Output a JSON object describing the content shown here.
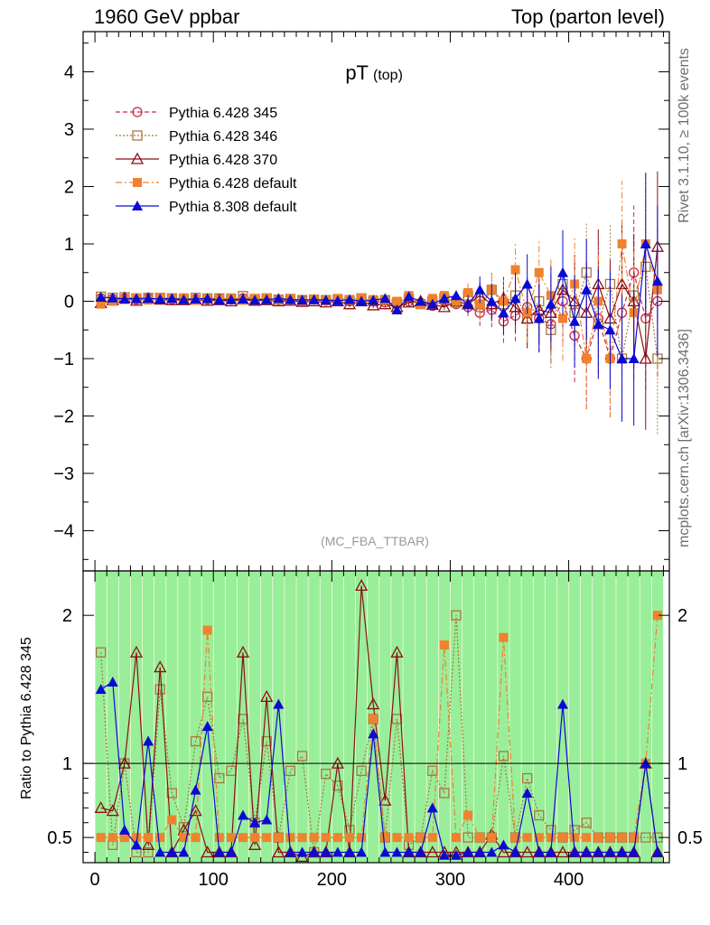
{
  "header": {
    "left": "1960 GeV ppbar",
    "right": "Top (parton level)"
  },
  "side_labels": {
    "rivet": "Rivet 3.1.10, ≥ 100k events",
    "mcplots": "mcplots.cern.ch [arXiv:1306.3436]"
  },
  "plot": {
    "title_main": "pT",
    "title_sub": "(top)",
    "watermark": "(MC_FBA_TTBAR)",
    "ratio_ylabel": "Ratio to Pythia 6.428 345"
  },
  "legend": [
    {
      "label": "Pythia 6.428 345",
      "color": "#c8284b",
      "marker": "open-circle",
      "dash": "5,3"
    },
    {
      "label": "Pythia 6.428 346",
      "color": "#a5793e",
      "marker": "open-square",
      "dash": "2,2"
    },
    {
      "label": "Pythia 6.428 370",
      "color": "#8c0f14",
      "marker": "open-triangle",
      "dash": ""
    },
    {
      "label": "Pythia 6.428 default",
      "color": "#f0822d",
      "marker": "filled-square",
      "dash": "7,3,2,3"
    },
    {
      "label": "Pythia 8.308 default",
      "color": "#0a0ad2",
      "marker": "filled-triangle",
      "dash": ""
    }
  ],
  "chart_data": {
    "type": "scatter",
    "title": "pT (top)",
    "xlim": [
      -10,
      485
    ],
    "ylim": [
      -4.7,
      4.7
    ],
    "ratio_ylim": [
      0.33,
      2.3
    ],
    "x_ticks": [
      0,
      100,
      200,
      300,
      400
    ],
    "y_ticks": [
      -4,
      -3,
      -2,
      -1,
      0,
      1,
      2,
      3,
      4
    ],
    "ratio_ticks": [
      0.5,
      1,
      2
    ],
    "series": [
      {
        "name": "Pythia 6.428 345",
        "x": [
          5,
          15,
          25,
          35,
          45,
          55,
          65,
          75,
          85,
          95,
          105,
          115,
          125,
          135,
          145,
          155,
          165,
          175,
          185,
          195,
          205,
          215,
          225,
          235,
          245,
          255,
          265,
          275,
          285,
          295,
          305,
          315,
          325,
          335,
          345,
          355,
          365,
          375,
          385,
          395,
          405,
          415,
          425,
          435,
          445,
          455,
          465,
          475
        ],
        "y": [
          0.05,
          0.04,
          0.05,
          0.03,
          0.05,
          0.04,
          0.03,
          0.05,
          0.04,
          0.03,
          0.04,
          0.03,
          0.05,
          0.03,
          0.04,
          0.02,
          0.03,
          0.02,
          0.03,
          0.01,
          0.02,
          0.0,
          0.02,
          0.0,
          -0.02,
          -0.05,
          0.0,
          -0.03,
          -0.08,
          0.0,
          -0.05,
          -0.1,
          -0.2,
          -0.15,
          -0.35,
          -0.25,
          -0.1,
          -0.3,
          -0.4,
          0.0,
          -0.6,
          -1.0,
          -0.3,
          -1.0,
          -0.2,
          0.5,
          -0.3,
          0.0
        ]
      },
      {
        "name": "Pythia 6.428 346",
        "x": [
          5,
          15,
          25,
          35,
          45,
          55,
          65,
          75,
          85,
          95,
          105,
          115,
          125,
          135,
          145,
          155,
          165,
          175,
          185,
          195,
          205,
          215,
          225,
          235,
          245,
          255,
          265,
          275,
          285,
          295,
          305,
          315,
          325,
          335,
          345,
          355,
          365,
          375,
          385,
          395,
          405,
          415,
          425,
          435,
          445,
          455,
          465,
          475
        ],
        "y": [
          0.08,
          0.06,
          0.07,
          0.05,
          0.06,
          0.06,
          0.05,
          0.04,
          0.06,
          0.05,
          0.05,
          0.04,
          0.09,
          0.04,
          0.05,
          0.03,
          0.04,
          0.02,
          0.03,
          0.02,
          0.03,
          0.02,
          0.05,
          0.0,
          0.02,
          -0.03,
          0.05,
          -0.05,
          0.0,
          0.05,
          -0.02,
          0.1,
          -0.1,
          0.2,
          -0.05,
          0.1,
          -0.3,
          0.0,
          -0.5,
          0.3,
          -0.2,
          0.5,
          -0.4,
          0.3,
          -1.0,
          0.1,
          0.6,
          -1.0
        ]
      },
      {
        "name": "Pythia 6.428 370",
        "x": [
          5,
          15,
          25,
          35,
          45,
          55,
          65,
          75,
          85,
          95,
          105,
          115,
          125,
          135,
          145,
          155,
          165,
          175,
          185,
          195,
          205,
          215,
          225,
          235,
          245,
          255,
          265,
          275,
          285,
          295,
          305,
          315,
          325,
          335,
          345,
          355,
          365,
          375,
          385,
          395,
          405,
          415,
          425,
          435,
          445,
          455,
          465,
          475
        ],
        "y": [
          -0.03,
          0.02,
          0.06,
          0.01,
          0.05,
          0.03,
          0.02,
          0.02,
          0.03,
          0.01,
          0.02,
          0.0,
          0.03,
          0.01,
          0.02,
          0.0,
          0.01,
          -0.01,
          0.0,
          -0.02,
          0.0,
          -0.05,
          0.0,
          -0.07,
          -0.05,
          -0.1,
          -0.02,
          0.0,
          -0.06,
          -0.1,
          0.0,
          -0.05,
          0.1,
          -0.05,
          0.05,
          -0.1,
          -0.3,
          -0.15,
          -0.2,
          0.2,
          0.0,
          -0.2,
          0.3,
          -0.3,
          0.3,
          0.0,
          -1.0,
          0.95
        ]
      },
      {
        "name": "Pythia 6.428 default",
        "x": [
          5,
          15,
          25,
          35,
          45,
          55,
          65,
          75,
          85,
          95,
          105,
          115,
          125,
          135,
          145,
          155,
          165,
          175,
          185,
          195,
          205,
          215,
          225,
          235,
          245,
          255,
          265,
          275,
          285,
          295,
          305,
          315,
          325,
          335,
          345,
          355,
          365,
          375,
          385,
          395,
          405,
          415,
          425,
          435,
          445,
          455,
          465,
          475
        ],
        "y": [
          -0.05,
          0.0,
          0.03,
          0.06,
          0.02,
          0.07,
          0.04,
          0.06,
          0.02,
          0.05,
          0.03,
          0.06,
          0.02,
          0.05,
          0.06,
          0.03,
          0.05,
          0.0,
          0.04,
          0.01,
          0.05,
          0.02,
          0.06,
          0.03,
          0.02,
          0.0,
          0.1,
          -0.05,
          0.05,
          0.1,
          0.0,
          0.15,
          -0.05,
          0.2,
          0.0,
          0.55,
          -0.2,
          0.5,
          0.1,
          -0.3,
          0.3,
          -1.0,
          0.0,
          -1.0,
          1.0,
          -0.2,
          1.0,
          0.2
        ]
      },
      {
        "name": "Pythia 8.308 default",
        "x": [
          5,
          15,
          25,
          35,
          45,
          55,
          65,
          75,
          85,
          95,
          105,
          115,
          125,
          135,
          145,
          155,
          165,
          175,
          185,
          195,
          205,
          215,
          225,
          235,
          245,
          255,
          265,
          275,
          285,
          295,
          305,
          315,
          325,
          335,
          345,
          355,
          365,
          375,
          385,
          395,
          405,
          415,
          425,
          435,
          445,
          455,
          465,
          475
        ],
        "y": [
          0.07,
          0.06,
          0.04,
          0.05,
          0.05,
          0.04,
          0.05,
          0.03,
          0.04,
          0.05,
          0.02,
          0.03,
          0.04,
          0.02,
          0.03,
          0.05,
          0.03,
          0.02,
          0.03,
          0.02,
          0.01,
          0.03,
          0.0,
          0.02,
          0.05,
          -0.15,
          0.08,
          0.0,
          -0.05,
          0.05,
          0.1,
          -0.05,
          0.2,
          0.0,
          -0.2,
          0.05,
          0.3,
          -0.3,
          -0.05,
          0.5,
          -0.35,
          0.2,
          -0.4,
          -0.5,
          -1.0,
          -1.0,
          1.0,
          0.35
        ]
      }
    ],
    "ratio_band": {
      "x": [
        5,
        15,
        25,
        35,
        45,
        55,
        65,
        75,
        85,
        95,
        105,
        115,
        125,
        135,
        145,
        155,
        165,
        175,
        185,
        195,
        205,
        215,
        225,
        235,
        245,
        255,
        265,
        275,
        285,
        295,
        305,
        315,
        325,
        335,
        345,
        355,
        365,
        375,
        385,
        395,
        405,
        415,
        425,
        435,
        445,
        455,
        465,
        475
      ],
      "green_half_width": [
        1.5,
        1.5,
        1.5,
        1.5,
        1.5,
        1.5,
        1.5,
        1.4,
        1.5,
        1.5,
        1.5,
        1.5,
        1.5,
        1.5,
        1.5,
        1.5,
        1.5,
        1.5,
        1.5,
        1.5,
        1.5,
        1.5,
        1.5,
        1.5,
        1.5,
        1.5,
        1.5,
        1.5,
        1.5,
        1.5,
        1.5,
        1.5,
        1.5,
        1.5,
        1.5,
        1.5,
        1.5,
        1.5,
        1.5,
        1.5,
        1.5,
        1.5,
        1.5,
        1.5,
        1.5,
        1.5,
        1.5,
        1.5
      ],
      "yellow_half_width": [
        2.0,
        2.0,
        2.0,
        2.0,
        2.0,
        2.0,
        2.0,
        2.0,
        2.0,
        2.0,
        2.0,
        2.0,
        2.0,
        2.0,
        2.0,
        2.0,
        2.0,
        2.0,
        2.0,
        2.0,
        2.0,
        2.0,
        2.0,
        2.0,
        2.0,
        2.0,
        2.0,
        2.0,
        2.0,
        2.0,
        2.0,
        2.0,
        2.0,
        2.0,
        2.0,
        2.0,
        2.0,
        2.0,
        2.0,
        2.0,
        2.0,
        2.0,
        2.0,
        2.0,
        2.0,
        2.0,
        2.0,
        2.0
      ]
    },
    "ratio": [
      {
        "name": "Pythia 6.428 346",
        "values": [
          1.75,
          0.45,
          1.0,
          0.4,
          0.4,
          1.5,
          0.8,
          0.57,
          1.15,
          1.45,
          0.9,
          0.95,
          1.3,
          0.6,
          1.15,
          0.5,
          0.95,
          1.05,
          0.4,
          0.93,
          0.85,
          0.55,
          0.95,
          1.3,
          0.5,
          1.3,
          0.45,
          0.5,
          0.95,
          0.8,
          2.0,
          0.5,
          0.5,
          0.5,
          1.05,
          0.5,
          0.9,
          0.65,
          0.55,
          0.5,
          0.55,
          0.6,
          0.5,
          0.5,
          0.5,
          0.5,
          0.5,
          0.5
        ]
      },
      {
        "name": "Pythia 6.428 370",
        "values": [
          0.7,
          0.68,
          1.0,
          1.75,
          0.45,
          1.65,
          0.4,
          0.55,
          0.68,
          0.4,
          0.4,
          0.4,
          1.75,
          0.45,
          1.45,
          0.4,
          0.4,
          0.37,
          0.4,
          0.4,
          1.0,
          0.4,
          2.2,
          1.4,
          0.75,
          1.75,
          0.4,
          0.4,
          0.4,
          0.4,
          0.4,
          0.4,
          0.4,
          0.52,
          0.4,
          0.4,
          0.4,
          0.4,
          0.4,
          0.4,
          0.4,
          0.4,
          0.4,
          0.4,
          0.4,
          0.4,
          1.0,
          0.4
        ]
      },
      {
        "name": "Pythia 6.428 default",
        "values": [
          0.5,
          0.5,
          0.5,
          0.5,
          0.5,
          0.5,
          0.62,
          0.5,
          0.5,
          1.9,
          0.5,
          0.5,
          0.5,
          0.5,
          0.5,
          0.5,
          0.5,
          0.5,
          0.5,
          0.5,
          0.5,
          0.5,
          0.5,
          1.3,
          0.5,
          0.5,
          0.5,
          0.5,
          0.5,
          1.8,
          0.5,
          0.65,
          0.5,
          0.5,
          1.85,
          0.5,
          0.5,
          0.5,
          0.5,
          0.5,
          0.5,
          0.5,
          0.5,
          0.5,
          0.5,
          0.5,
          1.0,
          2.0
        ]
      },
      {
        "name": "Pythia 8.308 default",
        "values": [
          1.5,
          1.55,
          0.55,
          0.45,
          1.15,
          0.4,
          0.4,
          0.4,
          0.82,
          1.25,
          0.4,
          0.4,
          0.65,
          0.6,
          0.62,
          1.4,
          0.4,
          0.4,
          0.4,
          0.4,
          0.4,
          0.4,
          0.4,
          1.2,
          0.4,
          0.4,
          0.4,
          0.4,
          0.7,
          0.38,
          0.38,
          0.4,
          0.4,
          0.4,
          0.45,
          0.4,
          0.8,
          0.4,
          0.4,
          1.4,
          0.4,
          0.4,
          0.4,
          0.4,
          0.4,
          0.4,
          1.0,
          0.4
        ]
      }
    ]
  }
}
